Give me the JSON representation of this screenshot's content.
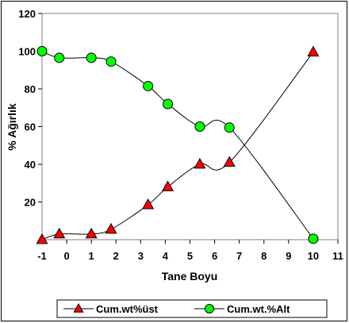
{
  "chart_data": {
    "type": "line",
    "xlabel": "Tane Boyu",
    "ylabel": "% Ağırlık",
    "xlim": [
      -1,
      11
    ],
    "ylim": [
      0,
      120
    ],
    "xticks": [
      "-1",
      "0",
      "1",
      "2",
      "3",
      "4",
      "5",
      "6",
      "7",
      "8",
      "9",
      "10",
      "11"
    ],
    "yticks": [
      "20",
      "40",
      "60",
      "80",
      "100",
      "120"
    ],
    "grid": false,
    "legend": "bottom",
    "series": [
      {
        "name": "Cum.wt%üst",
        "marker": "triangle",
        "color": "#ff0000",
        "points": [
          {
            "x": -1.0,
            "y": 0
          },
          {
            "x": -0.3,
            "y": 3
          },
          {
            "x": 1.0,
            "y": 3
          },
          {
            "x": 1.8,
            "y": 5.5
          },
          {
            "x": 3.3,
            "y": 18.5
          },
          {
            "x": 4.1,
            "y": 28
          },
          {
            "x": 5.4,
            "y": 40
          },
          {
            "x": 6.6,
            "y": 41
          },
          {
            "x": 10.0,
            "y": 99.5
          }
        ]
      },
      {
        "name": "Cum.wt.%Alt",
        "marker": "circle",
        "color": "#00ff00",
        "points": [
          {
            "x": -1.0,
            "y": 100
          },
          {
            "x": -0.3,
            "y": 96.5
          },
          {
            "x": 1.0,
            "y": 96.5
          },
          {
            "x": 1.8,
            "y": 94.5
          },
          {
            "x": 3.3,
            "y": 81.5
          },
          {
            "x": 4.1,
            "y": 72
          },
          {
            "x": 5.4,
            "y": 60
          },
          {
            "x": 6.6,
            "y": 59.5
          },
          {
            "x": 10.0,
            "y": 0.5
          }
        ]
      }
    ]
  }
}
